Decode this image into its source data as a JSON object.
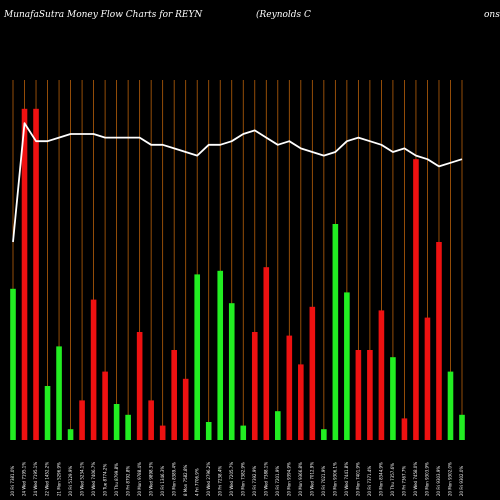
{
  "header": {
    "title": "MunafaSutra  Money Flow  Charts for REYN",
    "subtitle": "(Reynolds C",
    "subtitle_cont": "ons"
  },
  "colors": {
    "background": "#000000",
    "gridline": "#b8600a",
    "up": "#22ee22",
    "down": "#ee1111",
    "line": "#ffffff"
  },
  "chart_data": {
    "type": "bar",
    "title": "MunafaSutra  Money Flow  Charts for REYN",
    "ylim": [
      0,
      100
    ],
    "bars": [
      {
        "value": 42,
        "dir": "up"
      },
      {
        "value": 92,
        "dir": "down"
      },
      {
        "value": 92,
        "dir": "down"
      },
      {
        "value": 15,
        "dir": "up"
      },
      {
        "value": 26,
        "dir": "up"
      },
      {
        "value": 3,
        "dir": "up"
      },
      {
        "value": 11,
        "dir": "down"
      },
      {
        "value": 39,
        "dir": "down"
      },
      {
        "value": 19,
        "dir": "down"
      },
      {
        "value": 10,
        "dir": "up"
      },
      {
        "value": 7,
        "dir": "up"
      },
      {
        "value": 30,
        "dir": "down"
      },
      {
        "value": 11,
        "dir": "down"
      },
      {
        "value": 4,
        "dir": "down"
      },
      {
        "value": 25,
        "dir": "down"
      },
      {
        "value": 17,
        "dir": "down"
      },
      {
        "value": 46,
        "dir": "up"
      },
      {
        "value": 5,
        "dir": "up"
      },
      {
        "value": 47,
        "dir": "up"
      },
      {
        "value": 38,
        "dir": "up"
      },
      {
        "value": 4,
        "dir": "up"
      },
      {
        "value": 30,
        "dir": "down"
      },
      {
        "value": 48,
        "dir": "down"
      },
      {
        "value": 8,
        "dir": "up"
      },
      {
        "value": 29,
        "dir": "down"
      },
      {
        "value": 21,
        "dir": "down"
      },
      {
        "value": 37,
        "dir": "down"
      },
      {
        "value": 3,
        "dir": "up"
      },
      {
        "value": 60,
        "dir": "up"
      },
      {
        "value": 41,
        "dir": "up"
      },
      {
        "value": 25,
        "dir": "down"
      },
      {
        "value": 25,
        "dir": "down"
      },
      {
        "value": 36,
        "dir": "down"
      },
      {
        "value": 23,
        "dir": "up"
      },
      {
        "value": 6,
        "dir": "down"
      },
      {
        "value": 78,
        "dir": "down"
      },
      {
        "value": 34,
        "dir": "down"
      },
      {
        "value": 55,
        "dir": "down"
      },
      {
        "value": 19,
        "dir": "up"
      },
      {
        "value": 7,
        "dir": "up"
      }
    ],
    "line": [
      55,
      88,
      83,
      83,
      84,
      85,
      85,
      85,
      84,
      84,
      84,
      84,
      82,
      82,
      81,
      80,
      79,
      82,
      82,
      83,
      85,
      86,
      84,
      82,
      83,
      81,
      80,
      79,
      80,
      83,
      84,
      83,
      82,
      80,
      81,
      79,
      78,
      76,
      77,
      78
    ],
    "x_tick_labels": [
      "20 Fri 7381.0%",
      "24 Wed 7195.1%",
      "24 Wed 7195.1%",
      "22 Wed 1452.2%",
      "21 Mon 5296.9%",
      "20 Fri 5129.9%",
      "20 Wed 5234.1%",
      "20 Wed 7406.7%",
      "20 Tue 8774.2%",
      "20 Thu 8799.8%",
      "20 Fri 8792.8%",
      "20 Mon 9788.4%",
      "20 Wed 9898.3%",
      "20 Fri 1346.3%",
      "20 Mon 8389.4%",
      "8 Mon 7582.8%",
      "4 Fri 7706.9%",
      "20 Wed 2796.2%",
      "20 Fri 7238.4%",
      "20 Wed 7205.7%",
      "20 Mon 7382.9%",
      "20 Fri 7392.9%",
      "20 Wed 7388.1%",
      "20 Fri 7201.9%",
      "20 Mon 9394.9%",
      "20 Mon 9366.8%",
      "20 Wed 7012.9%",
      "20 Fri 7021.9%",
      "20 Mon 9306.1%",
      "20 Wed 7441.8%",
      "20 Mon 7401.9%",
      "20 Fri 7371.4%",
      "20 Mon 8344.9%",
      "20 Thu 7357.6%",
      "20 Fri 7367.7%",
      "20 Wed 7458.0%",
      "20 Mon 9303.9%",
      "20 Fri 9303.9%",
      "20 Mon 9302.0%",
      "20 Fri 9302.0%"
    ]
  }
}
